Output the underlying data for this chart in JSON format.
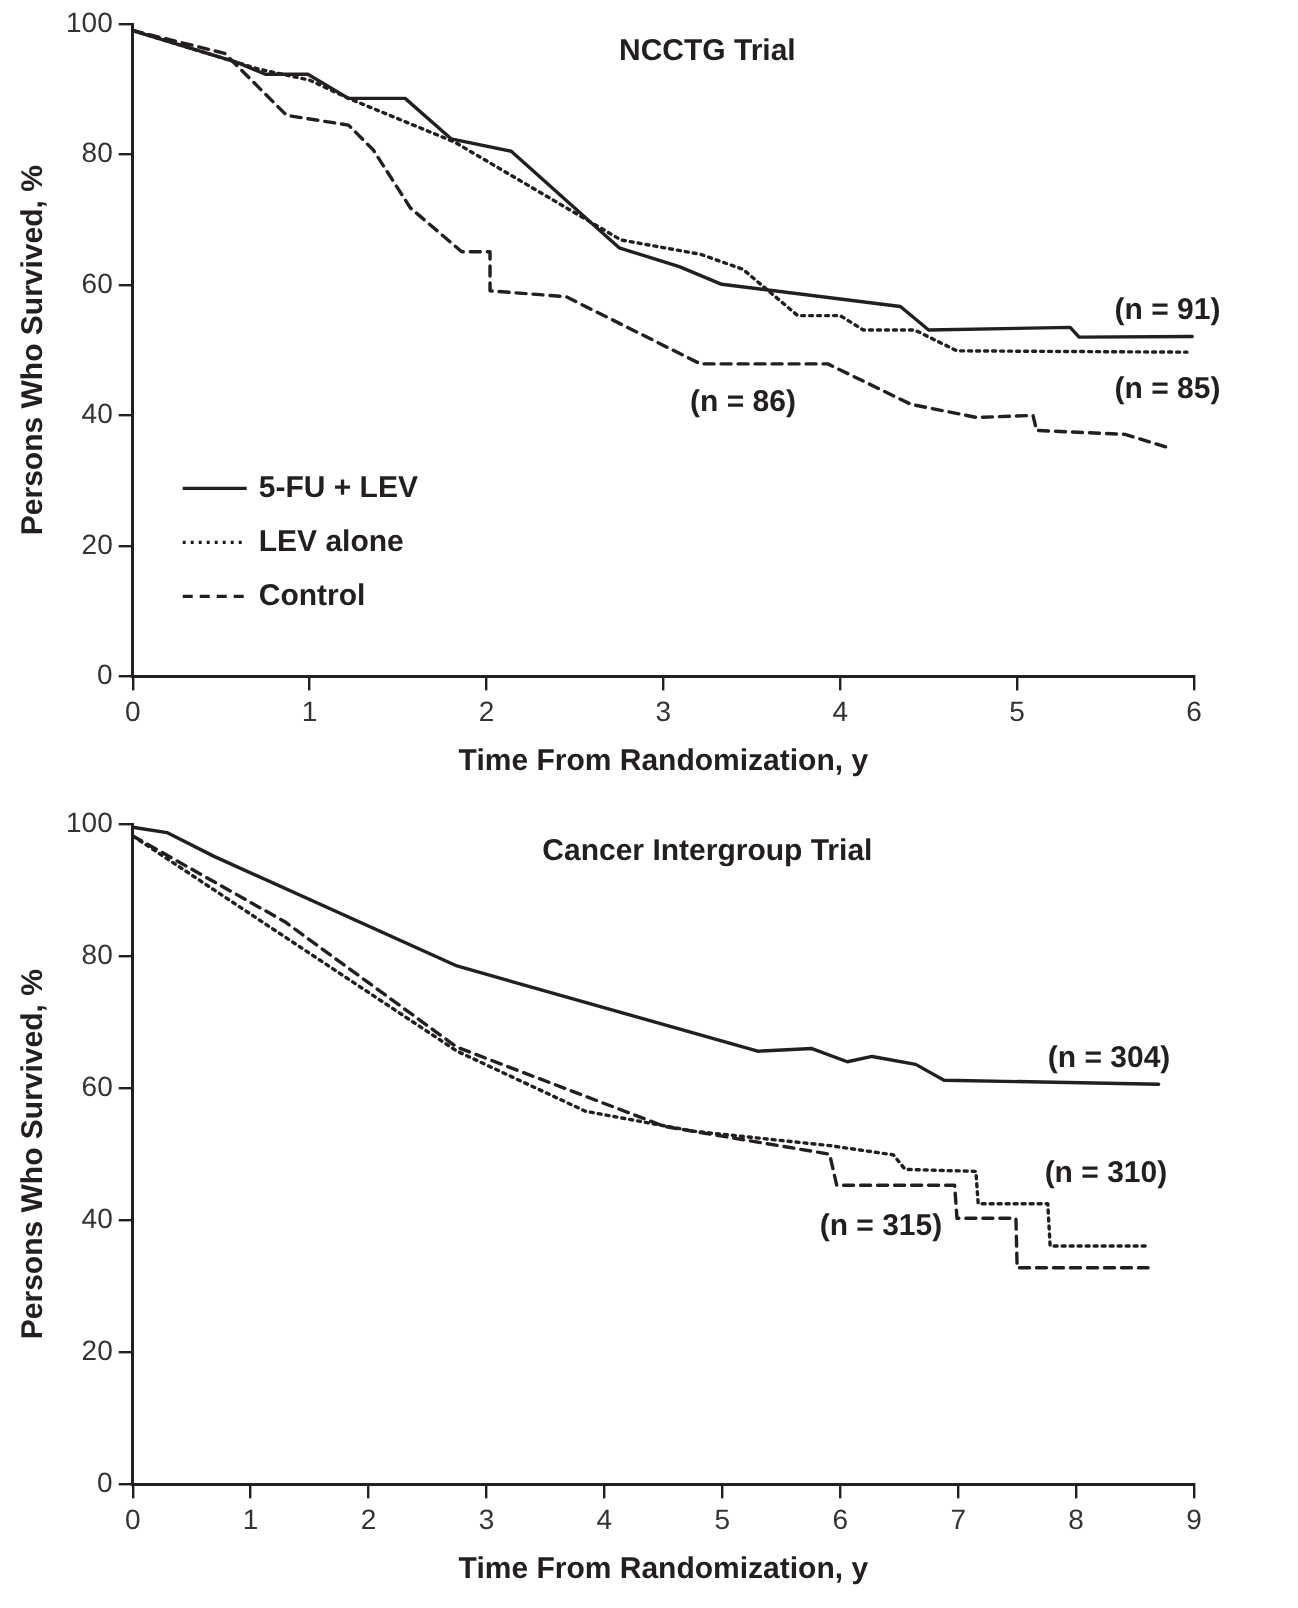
{
  "chart_data": [
    {
      "type": "line",
      "title": "NCCTG Trial",
      "xlabel": "Time From Randomization, y",
      "ylabel": "Persons Who Survived, %",
      "xlim": [
        0,
        6
      ],
      "ylim": [
        0,
        100
      ],
      "xticks": [
        0,
        1,
        2,
        3,
        4,
        5,
        6
      ],
      "yticks": [
        0,
        20,
        40,
        60,
        80,
        100
      ],
      "grid": false,
      "legend": "bottom left",
      "marker": "none",
      "series": [
        {
          "name": "5-FU + LEV",
          "color": "#231f20",
          "line_style": "solid",
          "x": [
            0,
            0.59,
            0.75,
            0.99,
            1.22,
            1.54,
            1.8,
            2.14,
            2.75,
            3.09,
            3.33,
            4.34,
            4.5,
            5.3,
            5.35,
            5.99
          ],
          "values": [
            99,
            94.1,
            92.3,
            92.3,
            88.6,
            88.6,
            82.4,
            80.5,
            65.7,
            62.8,
            60.1,
            56.7,
            53.1,
            53.5,
            52,
            52.1
          ]
        },
        {
          "name": "LEV alone",
          "color": "#231f20",
          "line_style": "dotted",
          "x": [
            0,
            0.71,
            1,
            1.22,
            1.82,
            2.76,
            3.21,
            3.45,
            3.76,
            4,
            4.13,
            4.42,
            4.66,
            5.96
          ],
          "values": [
            99,
            93.1,
            91.4,
            88.6,
            81.9,
            66.9,
            64.7,
            62.4,
            55.3,
            55.3,
            53.1,
            53.1,
            49.9,
            49.7
          ]
        },
        {
          "name": "Control",
          "color": "#231f20",
          "line_style": "dashed",
          "x": [
            0,
            0.52,
            0.87,
            1.22,
            1.36,
            1.57,
            1.86,
            2.02,
            2.02,
            2.45,
            3.21,
            3.93,
            4.4,
            4.77,
            5.09,
            5.11,
            5.61,
            5.85
          ],
          "values": [
            99,
            95.5,
            86,
            84.5,
            80.7,
            71.8,
            65.1,
            65.1,
            59.1,
            58.2,
            47.9,
            47.9,
            41.7,
            39.7,
            40,
            37.7,
            37.1,
            35.1
          ]
        }
      ],
      "annotations": [
        "(n = 91)",
        "(n = 85)",
        "(n = 86)"
      ]
    },
    {
      "type": "line",
      "title": "Cancer Intergroup Trial",
      "xlabel": "Time From Randomization, y",
      "ylabel": "Persons Who Survived, %",
      "xlim": [
        0,
        9
      ],
      "ylim": [
        0,
        100
      ],
      "xticks": [
        0,
        1,
        2,
        3,
        4,
        5,
        6,
        7,
        8,
        9
      ],
      "yticks": [
        0,
        20,
        40,
        60,
        80,
        100
      ],
      "grid": false,
      "marker": "none",
      "series": [
        {
          "color": "#231f20",
          "line_style": "solid",
          "x": [
            0,
            0.29,
            0.69,
            2.75,
            5.3,
            5.76,
            6.06,
            6.27,
            6.64,
            6.88,
            8.7
          ],
          "values": [
            99.5,
            98.7,
            95.1,
            78.5,
            65.6,
            66,
            64,
            64.8,
            63.6,
            61.2,
            60.6
          ]
        },
        {
          "color": "#231f20",
          "line_style": "dotted",
          "x": [
            0,
            2.75,
            3.84,
            4.75,
            5.91,
            6.45,
            6.55,
            7.15,
            7.17,
            7.76,
            7.78,
            8.61
          ],
          "values": [
            98.2,
            65.6,
            56.5,
            53.5,
            51.3,
            49.9,
            47.7,
            47.4,
            42.5,
            42.5,
            36.1,
            36.1
          ]
        },
        {
          "color": "#231f20",
          "line_style": "dashed",
          "x": [
            0,
            1.29,
            2.75,
            4.51,
            5.91,
            5.97,
            6.97,
            6.99,
            7.49,
            7.5,
            8.61
          ],
          "values": [
            98.2,
            85.2,
            66.2,
            54.2,
            50,
            45.3,
            45.3,
            40.3,
            40.3,
            32.8,
            32.8
          ]
        }
      ],
      "annotations": [
        "(n = 304)",
        "(n = 310)",
        "(n = 315)"
      ]
    }
  ]
}
